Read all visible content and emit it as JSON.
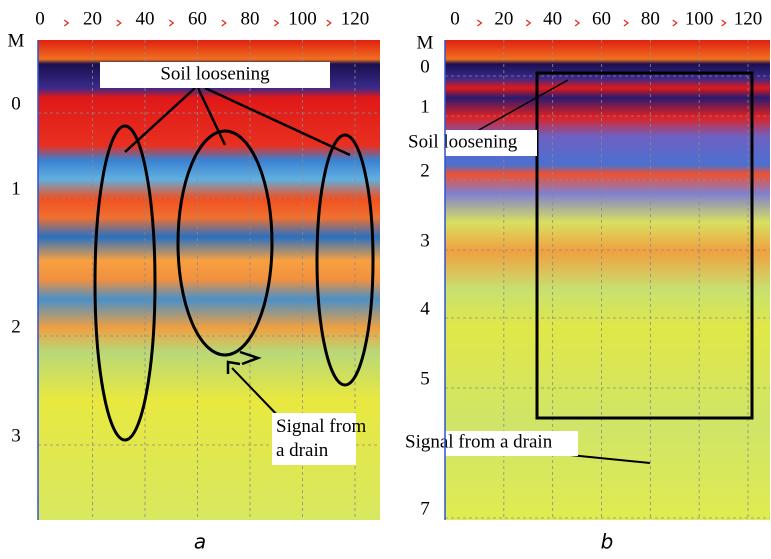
{
  "panels": [
    {
      "caption": "a",
      "unit": "M",
      "xticks": [
        0,
        20,
        40,
        60,
        80,
        100,
        120
      ],
      "yticks": [
        0,
        1,
        2,
        3
      ],
      "annotations": [
        "Soil loosening",
        "Signal from a drain"
      ]
    },
    {
      "caption": "b",
      "unit": "M",
      "xticks": [
        0,
        20,
        40,
        60,
        80,
        100,
        120
      ],
      "yticks": [
        0,
        1,
        2,
        3,
        4,
        5,
        7
      ],
      "annotations": [
        "Soil loosening",
        "Signal from a drain"
      ]
    }
  ]
}
